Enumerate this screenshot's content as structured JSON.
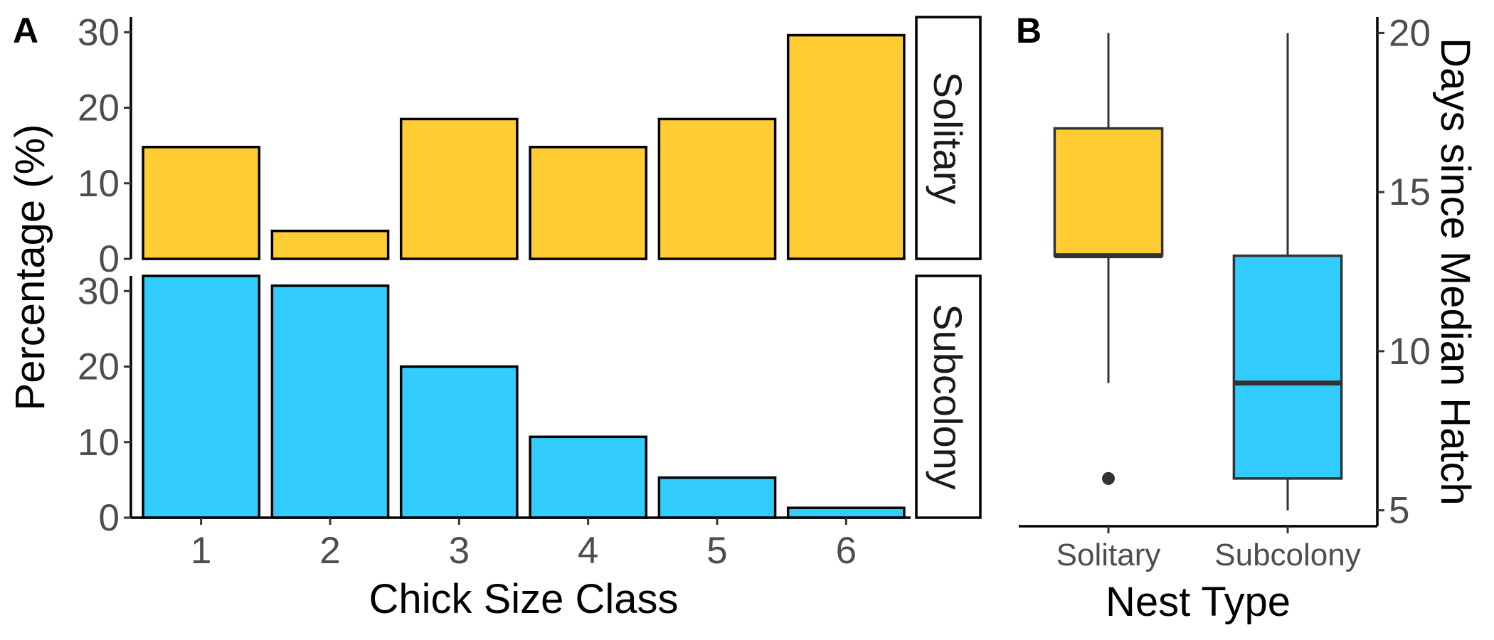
{
  "chart_data": [
    {
      "panel": "A",
      "type": "bar",
      "categories": [
        "1",
        "2",
        "3",
        "4",
        "5",
        "6"
      ],
      "facets": [
        {
          "label": "Solitary",
          "color": "#FFCC33",
          "values": [
            14.8,
            3.7,
            18.5,
            14.8,
            18.5,
            29.6
          ]
        },
        {
          "label": "Subcolony",
          "color": "#33CCFF",
          "values": [
            32.0,
            30.7,
            20.0,
            10.7,
            5.3,
            1.3
          ]
        }
      ],
      "xlabel": "Chick Size Class",
      "ylabel": "Percentage (%)",
      "ylim": [
        0,
        32
      ],
      "yticks": [
        "0",
        "10",
        "20",
        "30"
      ],
      "grid": false
    },
    {
      "panel": "B",
      "type": "boxplot",
      "categories": [
        "Solitary",
        "Subcolony"
      ],
      "boxes": [
        {
          "label": "Solitary",
          "color": "#FFCC33",
          "whisker_low": 9,
          "q1": 13,
          "median": 13,
          "q3": 17,
          "whisker_high": 20,
          "outliers": [
            6
          ]
        },
        {
          "label": "Subcolony",
          "color": "#33CCFF",
          "whisker_low": 5,
          "q1": 6,
          "median": 9,
          "q3": 13,
          "whisker_high": 20,
          "outliers": []
        }
      ],
      "xlabel": "Nest Type",
      "ylabel": "Days since Median Hatch",
      "ylim": [
        4.5,
        20.5
      ],
      "yticks": [
        "5",
        "10",
        "15",
        "20"
      ],
      "yaxis_position": "right",
      "grid": false
    }
  ]
}
